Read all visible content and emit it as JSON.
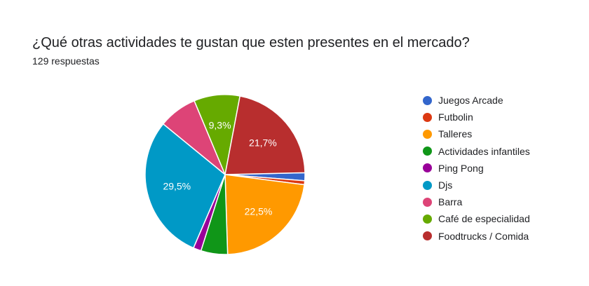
{
  "header": {
    "title": "¿Qué otras actividades te gustan que esten presentes en el mercado?",
    "subtitle": "129 respuestas"
  },
  "chart_data": {
    "type": "pie",
    "title": "¿Qué otras actividades te gustan que esten presentes en el mercado?",
    "subtitle": "129 respuestas",
    "legend_position": "right",
    "slices": [
      {
        "label": "Juegos Arcade",
        "value": 1.6,
        "color": "#3366cc",
        "display": ""
      },
      {
        "label": "Futbolin",
        "value": 0.8,
        "color": "#dc3912",
        "display": ""
      },
      {
        "label": "Talleres",
        "value": 22.5,
        "color": "#ff9900",
        "display": "22,5%"
      },
      {
        "label": "Actividades infantiles",
        "value": 5.4,
        "color": "#109618",
        "display": ""
      },
      {
        "label": "Ping Pong",
        "value": 1.6,
        "color": "#990099",
        "display": ""
      },
      {
        "label": "Djs",
        "value": 29.5,
        "color": "#0099c6",
        "display": "29,5%"
      },
      {
        "label": "Barra",
        "value": 7.8,
        "color": "#dd4477",
        "display": ""
      },
      {
        "label": "Café de especialidad",
        "value": 9.3,
        "color": "#66aa00",
        "display": "9,3%"
      },
      {
        "label": "Foodtrucks / Comida",
        "value": 21.7,
        "color": "#b82e2e",
        "display": "21,7%"
      }
    ]
  }
}
